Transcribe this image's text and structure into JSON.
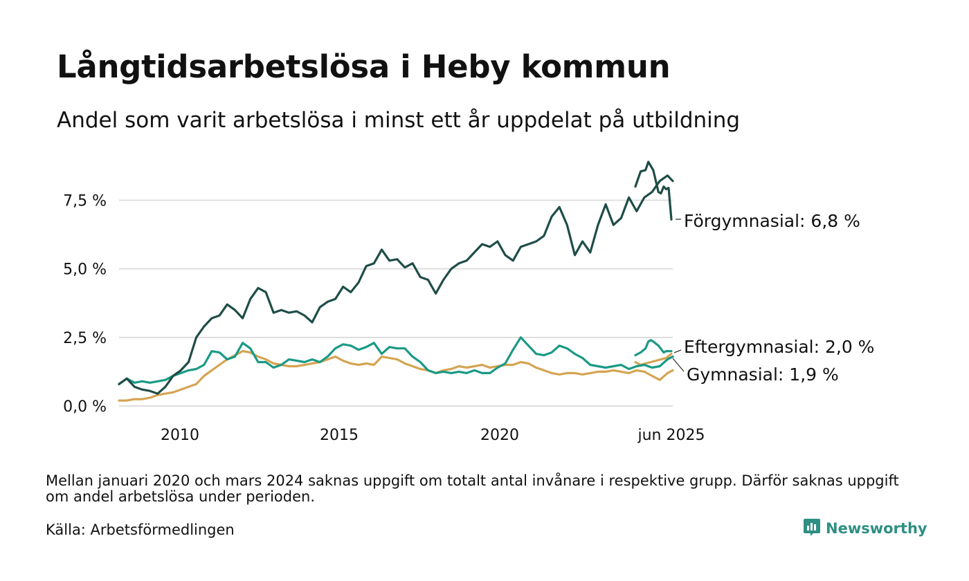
{
  "header": {
    "title": "Långtidsarbetslösa i Heby kommun",
    "subtitle": "Andel som varit arbetslösa i minst ett år uppdelat på utbildning"
  },
  "footer": {
    "note": "Mellan januari 2020 och mars 2024 saknas uppgift om totalt antal invånare i respektive grupp. Därför saknas uppgift om andel arbetslösa under perioden.",
    "source": "Källa: Arbetsförmedlingen",
    "brand": "Newsworthy"
  },
  "colors": {
    "forgymnasial": "#1f4d47",
    "eftergymnasial": "#1a9985",
    "gymnasial": "#d4a452",
    "grid": "#dddddd",
    "brand": "#2f8f83"
  },
  "chart_data": {
    "type": "line",
    "title": "Långtidsarbetslösa i Heby kommun",
    "subtitle": "Andel som varit arbetslösa i minst ett år uppdelat på utbildning",
    "y_unit": "%",
    "ylim": [
      0,
      9
    ],
    "y_ticks": [
      {
        "value": 0,
        "label": "0,0 %"
      },
      {
        "value": 2.5,
        "label": "2,5 %"
      },
      {
        "value": 5,
        "label": "5,0 %"
      },
      {
        "value": 7.5,
        "label": "7,5 %"
      }
    ],
    "x_ticks": [
      {
        "value": 2010,
        "label": "2010"
      },
      {
        "value": 2015,
        "label": "2015"
      },
      {
        "value": 2020,
        "label": "2020"
      },
      {
        "value": 2025.42,
        "label": "jun 2025"
      }
    ],
    "grid": true,
    "legend": "end-labels right of lines",
    "series": [
      {
        "key": "forgymnasial",
        "name": "Förgymnasial",
        "end_label": "Förgymnasial: 6,8 %",
        "segments": [
          [
            [
              2008.0,
              0.8
            ],
            [
              2008.25,
              1.0
            ],
            [
              2008.5,
              0.7
            ],
            [
              2008.75,
              0.6
            ],
            [
              2009.0,
              0.55
            ],
            [
              2009.25,
              0.45
            ],
            [
              2009.5,
              0.7
            ],
            [
              2009.75,
              1.1
            ],
            [
              2010.0,
              1.3
            ],
            [
              2010.25,
              1.6
            ],
            [
              2010.5,
              2.5
            ],
            [
              2010.75,
              2.9
            ],
            [
              2011.0,
              3.2
            ],
            [
              2011.25,
              3.3
            ],
            [
              2011.5,
              3.7
            ],
            [
              2011.75,
              3.5
            ],
            [
              2012.0,
              3.2
            ],
            [
              2012.25,
              3.9
            ],
            [
              2012.5,
              4.3
            ],
            [
              2012.75,
              4.15
            ],
            [
              2013.0,
              3.4
            ],
            [
              2013.25,
              3.5
            ],
            [
              2013.5,
              3.4
            ],
            [
              2013.75,
              3.45
            ],
            [
              2014.0,
              3.3
            ],
            [
              2014.25,
              3.05
            ],
            [
              2014.5,
              3.6
            ],
            [
              2014.75,
              3.8
            ],
            [
              2015.0,
              3.9
            ],
            [
              2015.25,
              4.35
            ],
            [
              2015.5,
              4.15
            ],
            [
              2015.75,
              4.5
            ],
            [
              2016.0,
              5.1
            ],
            [
              2016.25,
              5.2
            ],
            [
              2016.5,
              5.7
            ],
            [
              2016.75,
              5.3
            ],
            [
              2017.0,
              5.35
            ],
            [
              2017.25,
              5.05
            ],
            [
              2017.5,
              5.2
            ],
            [
              2017.75,
              4.7
            ],
            [
              2018.0,
              4.6
            ],
            [
              2018.25,
              4.1
            ],
            [
              2018.5,
              4.6
            ],
            [
              2018.75,
              5.0
            ],
            [
              2019.0,
              5.2
            ],
            [
              2019.25,
              5.3
            ],
            [
              2019.5,
              5.6
            ],
            [
              2019.75,
              5.9
            ],
            [
              2020.0,
              5.8
            ],
            [
              2020.25,
              6.0
            ],
            [
              2020.5,
              5.5
            ],
            [
              2020.75,
              5.3
            ],
            [
              2021.0,
              5.8
            ],
            [
              2021.25,
              5.9
            ],
            [
              2021.5,
              6.0
            ],
            [
              2021.75,
              6.2
            ],
            [
              2022.0,
              6.9
            ],
            [
              2022.25,
              7.25
            ],
            [
              2022.5,
              6.6
            ],
            [
              2022.75,
              5.5
            ],
            [
              2023.0,
              6.0
            ],
            [
              2023.25,
              5.6
            ],
            [
              2023.5,
              6.6
            ],
            [
              2023.75,
              7.35
            ],
            [
              2024.0,
              6.6
            ],
            [
              2024.25,
              6.85
            ],
            [
              2024.5,
              7.6
            ],
            [
              2024.75,
              7.1
            ],
            [
              2025.0,
              7.6
            ],
            [
              2025.25,
              7.8
            ],
            [
              2025.5,
              8.2
            ],
            [
              2025.75,
              8.4
            ],
            [
              2025.92,
              8.2
            ]
          ],
          [
            [
              2024.25,
              8.0
            ],
            [
              2024.42,
              8.55
            ],
            [
              2024.58,
              8.6
            ],
            [
              2024.67,
              8.9
            ],
            [
              2024.83,
              8.6
            ],
            [
              2025.0,
              7.8
            ],
            [
              2025.08,
              7.75
            ],
            [
              2025.17,
              8.0
            ],
            [
              2025.25,
              7.9
            ],
            [
              2025.33,
              7.95
            ],
            [
              2025.42,
              6.8
            ]
          ]
        ]
      },
      {
        "key": "eftergymnasial",
        "name": "Eftergymnasial",
        "end_label": "Eftergymnasial: 2,0 %",
        "segments": [
          [
            [
              2008.0,
              0.8
            ],
            [
              2008.25,
              1.0
            ],
            [
              2008.5,
              0.85
            ],
            [
              2008.75,
              0.9
            ],
            [
              2009.0,
              0.85
            ],
            [
              2009.25,
              0.9
            ],
            [
              2009.5,
              0.95
            ],
            [
              2009.75,
              1.1
            ],
            [
              2010.0,
              1.2
            ],
            [
              2010.25,
              1.3
            ],
            [
              2010.5,
              1.35
            ],
            [
              2010.75,
              1.5
            ],
            [
              2011.0,
              2.0
            ],
            [
              2011.25,
              1.95
            ],
            [
              2011.5,
              1.7
            ],
            [
              2011.75,
              1.8
            ],
            [
              2012.0,
              2.3
            ],
            [
              2012.25,
              2.1
            ],
            [
              2012.5,
              1.6
            ],
            [
              2012.75,
              1.6
            ],
            [
              2013.0,
              1.4
            ],
            [
              2013.25,
              1.5
            ],
            [
              2013.5,
              1.7
            ],
            [
              2013.75,
              1.65
            ],
            [
              2014.0,
              1.6
            ],
            [
              2014.25,
              1.7
            ],
            [
              2014.5,
              1.6
            ],
            [
              2014.75,
              1.8
            ],
            [
              2015.0,
              2.1
            ],
            [
              2015.25,
              2.25
            ],
            [
              2015.5,
              2.2
            ],
            [
              2015.75,
              2.05
            ],
            [
              2016.0,
              2.15
            ],
            [
              2016.25,
              2.3
            ],
            [
              2016.5,
              1.9
            ],
            [
              2016.75,
              2.15
            ],
            [
              2017.0,
              2.1
            ],
            [
              2017.25,
              2.1
            ],
            [
              2017.5,
              1.8
            ],
            [
              2017.75,
              1.6
            ],
            [
              2018.0,
              1.3
            ],
            [
              2018.25,
              1.2
            ],
            [
              2018.5,
              1.25
            ],
            [
              2018.75,
              1.2
            ],
            [
              2019.0,
              1.25
            ],
            [
              2019.25,
              1.2
            ],
            [
              2019.5,
              1.3
            ],
            [
              2019.75,
              1.2
            ],
            [
              2020.0,
              1.2
            ],
            [
              2020.25,
              1.4
            ],
            [
              2020.5,
              1.55
            ],
            [
              2020.75,
              2.05
            ],
            [
              2021.0,
              2.5
            ],
            [
              2021.25,
              2.2
            ],
            [
              2021.5,
              1.9
            ],
            [
              2021.75,
              1.85
            ],
            [
              2022.0,
              1.95
            ],
            [
              2022.25,
              2.2
            ],
            [
              2022.5,
              2.1
            ],
            [
              2022.75,
              1.9
            ],
            [
              2023.0,
              1.75
            ],
            [
              2023.25,
              1.5
            ],
            [
              2023.5,
              1.45
            ],
            [
              2023.75,
              1.4
            ],
            [
              2024.0,
              1.45
            ],
            [
              2024.25,
              1.5
            ],
            [
              2024.5,
              1.35
            ],
            [
              2024.75,
              1.45
            ],
            [
              2025.0,
              1.5
            ],
            [
              2025.25,
              1.4
            ],
            [
              2025.5,
              1.45
            ],
            [
              2025.75,
              1.7
            ],
            [
              2025.92,
              1.8
            ]
          ],
          [
            [
              2024.25,
              1.85
            ],
            [
              2024.42,
              1.95
            ],
            [
              2024.58,
              2.1
            ],
            [
              2024.67,
              2.35
            ],
            [
              2024.75,
              2.4
            ],
            [
              2024.83,
              2.35
            ],
            [
              2025.0,
              2.2
            ],
            [
              2025.17,
              1.95
            ],
            [
              2025.25,
              2.0
            ],
            [
              2025.42,
              2.0
            ]
          ]
        ]
      },
      {
        "key": "gymnasial",
        "name": "Gymnasial",
        "end_label": "Gymnasial: 1,9 %",
        "segments": [
          [
            [
              2008.0,
              0.2
            ],
            [
              2008.25,
              0.2
            ],
            [
              2008.5,
              0.25
            ],
            [
              2008.75,
              0.25
            ],
            [
              2009.0,
              0.3
            ],
            [
              2009.25,
              0.4
            ],
            [
              2009.5,
              0.45
            ],
            [
              2009.75,
              0.5
            ],
            [
              2010.0,
              0.6
            ],
            [
              2010.25,
              0.7
            ],
            [
              2010.5,
              0.8
            ],
            [
              2010.75,
              1.1
            ],
            [
              2011.0,
              1.3
            ],
            [
              2011.25,
              1.5
            ],
            [
              2011.5,
              1.7
            ],
            [
              2011.75,
              1.85
            ],
            [
              2012.0,
              2.0
            ],
            [
              2012.25,
              1.95
            ],
            [
              2012.5,
              1.8
            ],
            [
              2012.75,
              1.7
            ],
            [
              2013.0,
              1.55
            ],
            [
              2013.25,
              1.5
            ],
            [
              2013.5,
              1.45
            ],
            [
              2013.75,
              1.45
            ],
            [
              2014.0,
              1.5
            ],
            [
              2014.25,
              1.55
            ],
            [
              2014.5,
              1.6
            ],
            [
              2014.75,
              1.7
            ],
            [
              2015.0,
              1.8
            ],
            [
              2015.25,
              1.65
            ],
            [
              2015.5,
              1.55
            ],
            [
              2015.75,
              1.5
            ],
            [
              2016.0,
              1.55
            ],
            [
              2016.25,
              1.5
            ],
            [
              2016.5,
              1.8
            ],
            [
              2016.75,
              1.75
            ],
            [
              2017.0,
              1.7
            ],
            [
              2017.25,
              1.55
            ],
            [
              2017.5,
              1.45
            ],
            [
              2017.75,
              1.35
            ],
            [
              2018.0,
              1.3
            ],
            [
              2018.25,
              1.2
            ],
            [
              2018.5,
              1.3
            ],
            [
              2018.75,
              1.35
            ],
            [
              2019.0,
              1.45
            ],
            [
              2019.25,
              1.4
            ],
            [
              2019.5,
              1.45
            ],
            [
              2019.75,
              1.5
            ],
            [
              2020.0,
              1.4
            ],
            [
              2020.25,
              1.45
            ],
            [
              2020.5,
              1.5
            ],
            [
              2020.75,
              1.5
            ],
            [
              2021.0,
              1.6
            ],
            [
              2021.25,
              1.55
            ],
            [
              2021.5,
              1.4
            ],
            [
              2021.75,
              1.3
            ],
            [
              2022.0,
              1.2
            ],
            [
              2022.25,
              1.15
            ],
            [
              2022.5,
              1.2
            ],
            [
              2022.75,
              1.2
            ],
            [
              2023.0,
              1.15
            ],
            [
              2023.25,
              1.2
            ],
            [
              2023.5,
              1.25
            ],
            [
              2023.75,
              1.25
            ],
            [
              2024.0,
              1.3
            ],
            [
              2024.25,
              1.25
            ],
            [
              2024.5,
              1.2
            ],
            [
              2024.75,
              1.3
            ],
            [
              2025.0,
              1.25
            ],
            [
              2025.25,
              1.1
            ],
            [
              2025.5,
              0.95
            ],
            [
              2025.75,
              1.2
            ],
            [
              2025.92,
              1.3
            ]
          ],
          [
            [
              2024.25,
              1.6
            ],
            [
              2024.42,
              1.5
            ],
            [
              2024.58,
              1.55
            ],
            [
              2024.75,
              1.6
            ],
            [
              2024.92,
              1.65
            ],
            [
              2025.08,
              1.7
            ],
            [
              2025.25,
              1.75
            ],
            [
              2025.42,
              1.9
            ]
          ]
        ]
      }
    ]
  }
}
